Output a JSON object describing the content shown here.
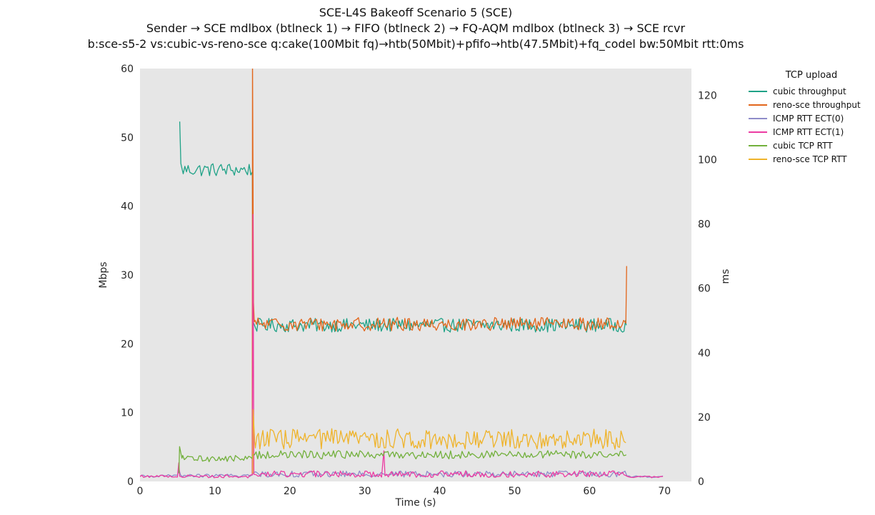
{
  "title": {
    "line1": "SCE-L4S Bakeoff Scenario 5 (SCE)",
    "line2": "Sender → SCE mdlbox (btlneck 1) → FIFO (btlneck 2) → FQ-AQM mdlbox (btlneck 3) → SCE rcvr",
    "line3": "b:sce-s5-2 vs:cubic-vs-reno-sce q:cake(100Mbit fq)→htb(50Mbit)+pfifo→htb(47.5Mbit)+fq_codel bw:50Mbit rtt:0ms"
  },
  "legend": {
    "title": "TCP upload",
    "entries": [
      {
        "label": "cubic throughput",
        "color": "#1fa287"
      },
      {
        "label": "reno-sce throughput",
        "color": "#e2661b"
      },
      {
        "label": "ICMP RTT ECT(0)",
        "color": "#8f8cc9"
      },
      {
        "label": "ICMP RTT ECT(1)",
        "color": "#ec3ba2"
      },
      {
        "label": "cubic TCP RTT",
        "color": "#72b03c"
      },
      {
        "label": "reno-sce TCP RTT",
        "color": "#efb32a"
      }
    ]
  },
  "colors": {
    "plot_background": "#e6e6e6",
    "figure_background": "#ffffff",
    "text": "#262626"
  },
  "chart_data": {
    "type": "line",
    "title": "SCE-L4S Bakeoff Scenario 5 (SCE)",
    "xlabel": "Time (s)",
    "ylabel_left": "Mbps",
    "ylabel_right": "ms",
    "x_range": [
      0,
      73.6
    ],
    "left_range": [
      0,
      60
    ],
    "right_range": [
      0,
      128.3
    ],
    "x_ticks": [
      0,
      10,
      20,
      30,
      40,
      50,
      60,
      70
    ],
    "left_ticks": [
      0,
      10,
      20,
      30,
      40,
      50,
      60
    ],
    "right_ticks": [
      0,
      20,
      40,
      60,
      80,
      100,
      120
    ],
    "grid": false,
    "legend_position": "upper right, outside axes",
    "series": [
      {
        "name": "cubic throughput",
        "axis": "left",
        "unit": "Mbps",
        "color": "#1fa287",
        "description": "starts at t=5.3s at 52.3 Mbps, oscillates ~45.3 Mbps until 15s, then ~22.7 Mbps until 65s",
        "segments": [
          {
            "type": "move",
            "t": 5.3,
            "v": 52.3
          },
          {
            "type": "line",
            "t": 5.45,
            "v": 46.2
          },
          {
            "type": "noise",
            "t0": 5.55,
            "t1": 14.95,
            "base": 45.3,
            "amp": 1.0,
            "dt": 0.22
          },
          {
            "type": "line",
            "t": 15.0,
            "v": 45.0
          },
          {
            "type": "line",
            "t": 15.08,
            "v": 23.2
          },
          {
            "type": "noise",
            "t0": 15.2,
            "t1": 64.8,
            "base": 22.7,
            "amp": 1.0,
            "dt": 0.2
          },
          {
            "type": "line",
            "t": 64.9,
            "v": 22.7
          }
        ]
      },
      {
        "name": "reno-sce throughput",
        "axis": "left",
        "unit": "Mbps",
        "color": "#e2661b",
        "description": "starts at t=15s with spike beyond 60 Mbps (clipped), oscillates ~22.8 Mbps until 65s, final spike to 31.3 Mbps",
        "segments": [
          {
            "type": "move",
            "t": 14.98,
            "v": 1.0
          },
          {
            "type": "line",
            "t": 15.02,
            "v": 62.0
          },
          {
            "type": "line",
            "t": 15.15,
            "v": 26.0
          },
          {
            "type": "line",
            "t": 15.25,
            "v": 23.2
          },
          {
            "type": "noise",
            "t0": 15.35,
            "t1": 64.7,
            "base": 22.85,
            "amp": 1.0,
            "dt": 0.2
          },
          {
            "type": "line",
            "t": 64.85,
            "v": 23.0
          },
          {
            "type": "line",
            "t": 64.95,
            "v": 31.3
          }
        ]
      },
      {
        "name": "ICMP RTT ECT(0)",
        "axis": "right",
        "unit": "ms",
        "color": "#8f8cc9",
        "description": "~1.7 ms baseline 0-15s, ~2.3 ms with jitter 15-65s, ~1.5 ms 65-70s",
        "segments": [
          {
            "type": "move",
            "t": 0,
            "v": 1.6
          },
          {
            "type": "noise",
            "t0": 0.25,
            "t1": 5.0,
            "base": 1.7,
            "amp": 0.4,
            "dt": 0.25
          },
          {
            "type": "line",
            "t": 5.2,
            "v": 3.8
          },
          {
            "type": "noise",
            "t0": 5.4,
            "t1": 14.9,
            "base": 1.8,
            "amp": 0.5,
            "dt": 0.25
          },
          {
            "type": "noise",
            "t0": 15.0,
            "t1": 64.9,
            "base": 2.3,
            "amp": 0.95,
            "dt": 0.22
          },
          {
            "type": "noise",
            "t0": 65.0,
            "t1": 70.0,
            "base": 1.5,
            "amp": 0.25,
            "dt": 0.3
          }
        ]
      },
      {
        "name": "ICMP RTT ECT(1)",
        "axis": "right",
        "unit": "ms",
        "color": "#ec3ba2",
        "description": "~1.6 ms baseline; spike 5.8 ms at t=5.2s; spike 83 ms at t=15.1s; spike 9.5 ms at t=32.6s; ~2.3 ms 15-65s; ~1.4 ms 65-70s",
        "segments": [
          {
            "type": "move",
            "t": 0,
            "v": 1.5
          },
          {
            "type": "noise",
            "t0": 0.25,
            "t1": 5.0,
            "base": 1.6,
            "amp": 0.4,
            "dt": 0.25
          },
          {
            "type": "line",
            "t": 5.18,
            "v": 5.8
          },
          {
            "type": "line",
            "t": 5.3,
            "v": 1.6
          },
          {
            "type": "noise",
            "t0": 5.4,
            "t1": 14.9,
            "base": 1.6,
            "amp": 0.5,
            "dt": 0.25
          },
          {
            "type": "line",
            "t": 15.0,
            "v": 2.0
          },
          {
            "type": "line",
            "t": 15.08,
            "v": 83.0
          },
          {
            "type": "line",
            "t": 15.2,
            "v": 2.2
          },
          {
            "type": "noise",
            "t0": 15.3,
            "t1": 32.4,
            "base": 2.3,
            "amp": 1.0,
            "dt": 0.22
          },
          {
            "type": "line",
            "t": 32.55,
            "v": 9.5
          },
          {
            "type": "noise",
            "t0": 32.7,
            "t1": 64.9,
            "base": 2.3,
            "amp": 1.05,
            "dt": 0.22
          },
          {
            "type": "noise",
            "t0": 65.0,
            "t1": 70.0,
            "base": 1.4,
            "amp": 0.3,
            "dt": 0.3
          }
        ]
      },
      {
        "name": "cubic TCP RTT",
        "axis": "right",
        "unit": "ms",
        "color": "#72b03c",
        "description": "starts t=5.2s spiking to 10.8 ms, ~7.1 ms until 15s, ~8.3 ms until 65s",
        "segments": [
          {
            "type": "move",
            "t": 5.2,
            "v": 2.5
          },
          {
            "type": "line",
            "t": 5.28,
            "v": 10.8
          },
          {
            "type": "line",
            "t": 5.6,
            "v": 7.2
          },
          {
            "type": "noise",
            "t0": 5.7,
            "t1": 14.95,
            "base": 7.1,
            "amp": 1.0,
            "dt": 0.22
          },
          {
            "type": "noise",
            "t0": 15.05,
            "t1": 64.8,
            "base": 8.3,
            "amp": 1.3,
            "dt": 0.22
          },
          {
            "type": "line",
            "t": 64.9,
            "v": 8.3
          }
        ]
      },
      {
        "name": "reno-sce TCP RTT",
        "axis": "right",
        "unit": "ms",
        "color": "#efb32a",
        "description": "starts t=15.1s spiking to 22.3 ms, then noisy ~13 ms (10-18 ms) until 65s",
        "segments": [
          {
            "type": "move",
            "t": 15.05,
            "v": 2.5
          },
          {
            "type": "line",
            "t": 15.1,
            "v": 22.3
          },
          {
            "type": "line",
            "t": 15.3,
            "v": 12.5
          },
          {
            "type": "noise",
            "t0": 15.4,
            "t1": 64.7,
            "base": 13.2,
            "amp": 3.2,
            "dt": 0.2
          },
          {
            "type": "line",
            "t": 64.85,
            "v": 12.0
          }
        ]
      }
    ]
  }
}
